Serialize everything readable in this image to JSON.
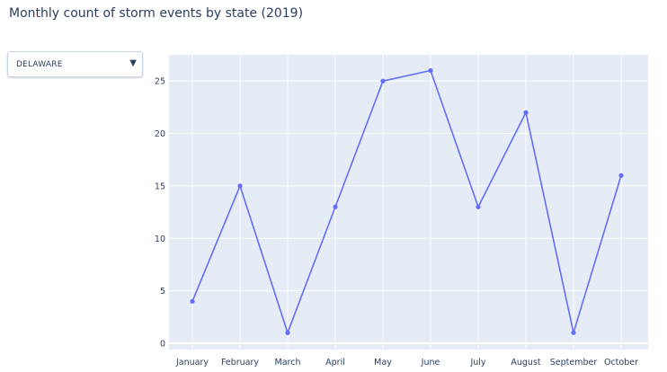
{
  "title": "Monthly count of storm events by state (2019)",
  "dropdown": {
    "selected": "DELAWARE",
    "arrow_icon": "triangle-down-icon"
  },
  "colors": {
    "plot_background": "#e5ecf6",
    "grid": "#ffffff",
    "line": "#636efa",
    "text": "#2a3f5f"
  },
  "chart_data": {
    "type": "line",
    "title": "Monthly count of storm events by state (2019)",
    "categories": [
      "January",
      "February",
      "March",
      "April",
      "May",
      "June",
      "July",
      "August",
      "September",
      "October"
    ],
    "series": [
      {
        "values": [
          4,
          15,
          1,
          13,
          25,
          26,
          13,
          22,
          1,
          16
        ]
      }
    ],
    "xlabel": "",
    "ylabel": "",
    "ylim": [
      -0.6,
      27.5
    ],
    "yticks": [
      0,
      5,
      10,
      15,
      20,
      25
    ],
    "grid": true,
    "markers": true
  }
}
